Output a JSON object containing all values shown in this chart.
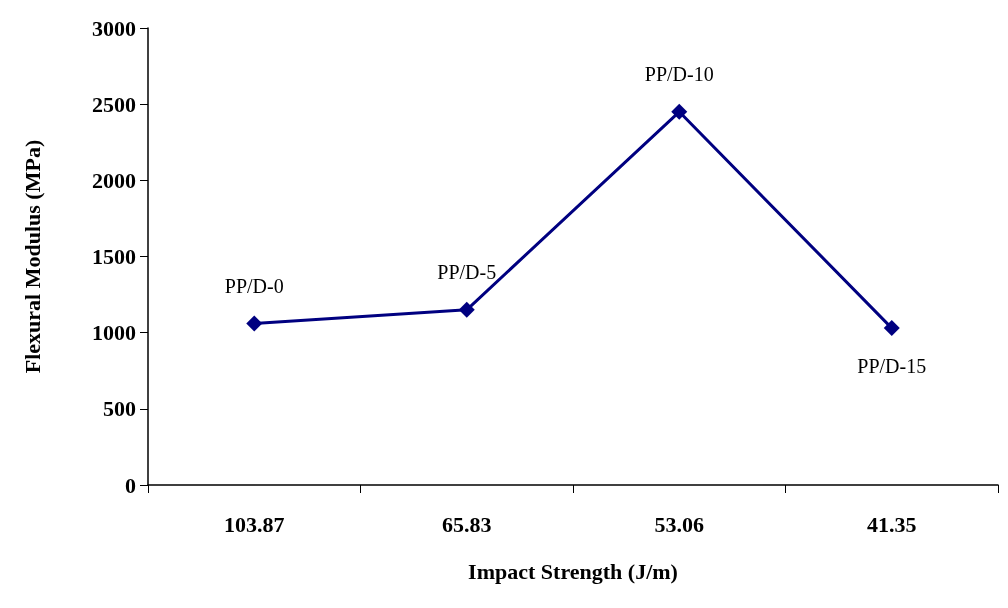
{
  "chart_data": {
    "type": "line",
    "xlabel": "Impact Strength (J/m)",
    "ylabel": "Flexural Modulus (MPa)",
    "categories": [
      "103.87",
      "65.83",
      "53.06",
      "41.35"
    ],
    "series": [
      {
        "color": "#000080",
        "values": [
          1060,
          1150,
          2450,
          1030
        ]
      }
    ],
    "ylim": [
      0,
      3000
    ],
    "yticks": [
      0,
      500,
      1000,
      1500,
      2000,
      2500,
      3000
    ],
    "grid": false,
    "marker": "diamond",
    "line_style": "solid",
    "annotations": [
      {
        "text": "PP/D-0",
        "x": "103.87",
        "y": 1060
      },
      {
        "text": "PP/D-5",
        "x": "65.83",
        "y": 1150
      },
      {
        "text": "PP/D-10",
        "x": "53.06",
        "y": 2450
      },
      {
        "text": "PP/D-15",
        "x": "41.35",
        "y": 1030
      }
    ]
  }
}
